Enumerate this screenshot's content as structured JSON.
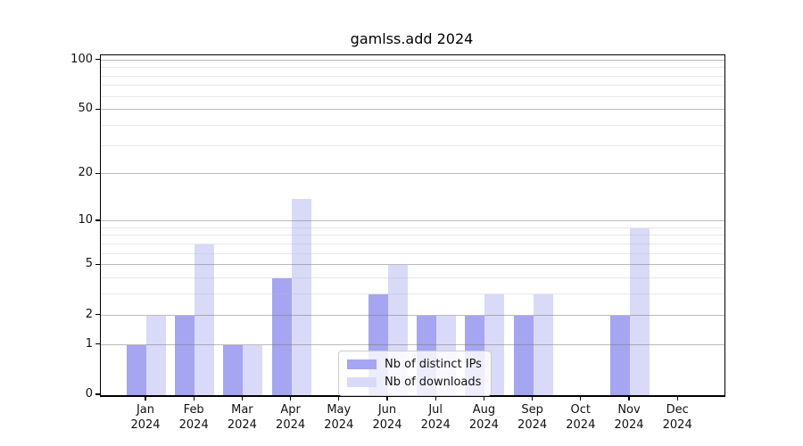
{
  "chart_data": {
    "type": "bar",
    "title": "gamlss.add 2024",
    "x_months": [
      "Jan",
      "Feb",
      "Mar",
      "Apr",
      "May",
      "Jun",
      "Jul",
      "Aug",
      "Sep",
      "Oct",
      "Nov",
      "Dec"
    ],
    "x_year": "2024",
    "series": [
      {
        "name": "Nb of distinct IPs",
        "color": "#a5a5f1",
        "values": [
          1,
          2,
          1,
          4,
          0,
          3,
          2,
          2,
          2,
          0,
          2,
          0
        ]
      },
      {
        "name": "Nb of downloads",
        "color": "#d9d9f8",
        "values": [
          2,
          7,
          1,
          14,
          0,
          5,
          2,
          3,
          3,
          0,
          9,
          0
        ]
      }
    ],
    "yscale": "log1p",
    "ylim": [
      0,
      110
    ],
    "y_major_ticks": [
      0,
      1,
      2,
      5,
      10,
      20,
      50,
      100
    ],
    "y_minor_ticks": [
      3,
      4,
      6,
      7,
      8,
      9,
      30,
      40,
      60,
      70,
      80,
      90
    ],
    "grid": true,
    "legend_position": "lower-center"
  }
}
